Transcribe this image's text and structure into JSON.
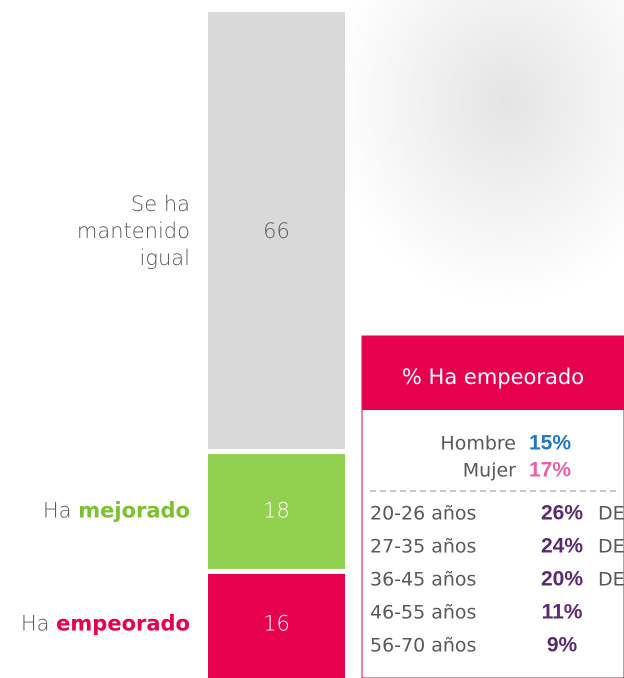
{
  "chart_data": {
    "type": "stacked-bar",
    "ylim": [
      0,
      100
    ],
    "series": [
      {
        "label_lines": [
          "Ha"
        ],
        "highlight": "empeorado",
        "color": "#e6004e",
        "highlight_color": "#e6004e",
        "text_color": "#ffffff",
        "values": [
          16
        ]
      },
      {
        "label_lines": [
          "Ha"
        ],
        "highlight": "mejorado",
        "color": "#92d050",
        "highlight_color": "#7cc230",
        "text_color": "#ffffff",
        "values": [
          18
        ]
      },
      {
        "label_lines": [
          "Se ha",
          "mantenido"
        ],
        "highlight": "igual",
        "color": "#d9d9d9",
        "highlight_color": "#222222",
        "text_color": "#595959",
        "values": [
          66
        ]
      }
    ]
  },
  "table": {
    "title_prefix": "% Ha",
    "title_highlight": "empeorado",
    "rows": [
      {
        "label": "Hombre",
        "value": "15%",
        "color": "#1f78c8"
      },
      {
        "label": "Mujer",
        "value": "17%",
        "color": "#ee5fa8"
      },
      {
        "label": "20-26 años",
        "value": "26%",
        "suffix": "DE",
        "color": "#5b2a6e"
      },
      {
        "label": "27-35 años",
        "value": "24%",
        "suffix": "DE",
        "color": "#5b2a6e"
      },
      {
        "label": "36-45 años",
        "value": "20%",
        "suffix": "DE",
        "color": "#5b2a6e"
      },
      {
        "label": "46-55 años",
        "value": "11%",
        "color": "#5b2a6e"
      },
      {
        "label": "56-70 años",
        "value": "9%",
        "color": "#5b2a6e"
      }
    ]
  }
}
